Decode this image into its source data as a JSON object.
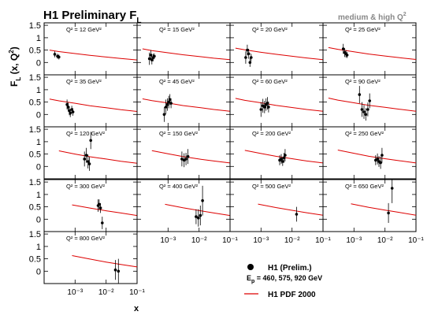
{
  "figure": {
    "title": "H1 Preliminary F",
    "title_sub": "L",
    "subtitle": "medium & high Q",
    "subtitle_sup": "2",
    "ylabel": "F",
    "ylabel_sub": "L",
    "ylabel_tail": " (x, Q",
    "ylabel_sup": "2",
    "ylabel_close": ")",
    "xlabel": "x",
    "legend_data": "H1 (Prelim.)",
    "legend_ep_prefix": "E",
    "legend_ep_sub": "p",
    "legend_ep_values": " = 460, 575, 920 GeV",
    "legend_curve": "H1 PDF 2000",
    "colors": {
      "curve": "#dd0000",
      "points": "#000000",
      "subtitle": "#888888"
    }
  },
  "chart_data": {
    "type": "scatter",
    "x_scale": "log",
    "xlim": [
      0.0001,
      0.1
    ],
    "ylim": [
      -0.5,
      1.6
    ],
    "y_ticks": [
      0,
      0.5,
      1,
      1.5
    ],
    "y_tick_labels": [
      "0",
      "0.5",
      "1",
      "1.5"
    ],
    "x_tick_labels": [
      "10⁻³",
      "10⁻²",
      "10⁻¹"
    ],
    "panel_label_prefix": "Q² = ",
    "panel_label_unit": " GeV²",
    "panels": [
      {
        "q2": "12",
        "curve": [
          [
            0.00015,
            0.5
          ],
          [
            0.0003,
            0.44
          ],
          [
            0.001,
            0.36
          ],
          [
            0.003,
            0.29
          ],
          [
            0.01,
            0.22
          ],
          [
            0.03,
            0.16
          ],
          [
            0.1,
            0.1
          ]
        ],
        "points": [
          [
            0.00022,
            0.33,
            0.12
          ],
          [
            0.00027,
            0.25,
            0.1
          ],
          [
            0.0003,
            0.22,
            0.1
          ]
        ]
      },
      {
        "q2": "15",
        "curve": [
          [
            0.00015,
            0.55
          ],
          [
            0.0003,
            0.48
          ],
          [
            0.001,
            0.39
          ],
          [
            0.003,
            0.31
          ],
          [
            0.01,
            0.24
          ],
          [
            0.03,
            0.17
          ],
          [
            0.1,
            0.11
          ]
        ],
        "points": [
          [
            0.00025,
            0.15,
            0.25
          ],
          [
            0.00028,
            0.3,
            0.2
          ],
          [
            0.0003,
            0.1,
            0.18
          ],
          [
            0.00033,
            0.2,
            0.15
          ],
          [
            0.00036,
            0.25,
            0.12
          ]
        ]
      },
      {
        "q2": "20",
        "curve": [
          [
            0.00015,
            0.58
          ],
          [
            0.0003,
            0.51
          ],
          [
            0.001,
            0.41
          ],
          [
            0.003,
            0.33
          ],
          [
            0.01,
            0.25
          ],
          [
            0.03,
            0.18
          ],
          [
            0.1,
            0.11
          ]
        ],
        "points": [
          [
            0.00032,
            0.2,
            0.25
          ],
          [
            0.00036,
            0.5,
            0.22
          ],
          [
            0.0004,
            0.35,
            0.2
          ],
          [
            0.00044,
            0.0,
            0.18
          ],
          [
            0.00048,
            0.2,
            0.15
          ]
        ]
      },
      {
        "q2": "25",
        "curve": [
          [
            0.00015,
            0.6
          ],
          [
            0.0003,
            0.53
          ],
          [
            0.001,
            0.43
          ],
          [
            0.003,
            0.34
          ],
          [
            0.01,
            0.26
          ],
          [
            0.03,
            0.19
          ],
          [
            0.1,
            0.12
          ]
        ],
        "points": [
          [
            0.00045,
            0.55,
            0.2
          ],
          [
            0.0005,
            0.4,
            0.18
          ],
          [
            0.00055,
            0.35,
            0.15
          ],
          [
            0.0006,
            0.3,
            0.12
          ]
        ]
      },
      {
        "q2": "35",
        "curve": [
          [
            0.00015,
            0.62
          ],
          [
            0.0003,
            0.55
          ],
          [
            0.001,
            0.45
          ],
          [
            0.003,
            0.35
          ],
          [
            0.01,
            0.27
          ],
          [
            0.03,
            0.19
          ],
          [
            0.1,
            0.12
          ]
        ],
        "points": [
          [
            0.00055,
            0.4,
            0.2
          ],
          [
            0.0006,
            0.3,
            0.18
          ],
          [
            0.00065,
            0.15,
            0.18
          ],
          [
            0.0007,
            0.05,
            0.16
          ],
          [
            0.00078,
            0.2,
            0.15
          ],
          [
            0.00085,
            0.1,
            0.15
          ]
        ]
      },
      {
        "q2": "45",
        "curve": [
          [
            0.00015,
            0.63
          ],
          [
            0.0003,
            0.56
          ],
          [
            0.001,
            0.46
          ],
          [
            0.003,
            0.36
          ],
          [
            0.01,
            0.28
          ],
          [
            0.03,
            0.2
          ],
          [
            0.1,
            0.13
          ]
        ],
        "points": [
          [
            0.00075,
            0.0,
            0.3
          ],
          [
            0.00085,
            0.3,
            0.3
          ],
          [
            0.00095,
            0.4,
            0.25
          ],
          [
            0.00105,
            0.5,
            0.25
          ],
          [
            0.00115,
            0.6,
            0.22
          ],
          [
            0.00125,
            0.45,
            0.2
          ]
        ]
      },
      {
        "q2": "60",
        "curve": [
          [
            0.00015,
            0.65
          ],
          [
            0.0003,
            0.57
          ],
          [
            0.001,
            0.47
          ],
          [
            0.003,
            0.37
          ],
          [
            0.01,
            0.28
          ],
          [
            0.03,
            0.2
          ],
          [
            0.1,
            0.13
          ]
        ],
        "points": [
          [
            0.001,
            0.2,
            0.3
          ],
          [
            0.00115,
            0.35,
            0.28
          ],
          [
            0.0013,
            0.3,
            0.25
          ],
          [
            0.00145,
            0.4,
            0.25
          ],
          [
            0.0016,
            0.45,
            0.25
          ],
          [
            0.00175,
            0.3,
            0.22
          ]
        ]
      },
      {
        "q2": "90",
        "curve": [
          [
            0.00015,
            0.66
          ],
          [
            0.0003,
            0.58
          ],
          [
            0.001,
            0.47
          ],
          [
            0.003,
            0.37
          ],
          [
            0.01,
            0.29
          ],
          [
            0.03,
            0.21
          ],
          [
            0.1,
            0.13
          ]
        ],
        "points": [
          [
            0.0015,
            0.8,
            0.35
          ],
          [
            0.0018,
            0.2,
            0.3
          ],
          [
            0.0021,
            0.1,
            0.28
          ],
          [
            0.0024,
            0.0,
            0.25
          ],
          [
            0.0028,
            0.2,
            0.28
          ],
          [
            0.0032,
            0.55,
            0.3
          ]
        ]
      },
      {
        "q2": "120",
        "curve": [
          [
            0.0003,
            0.63
          ],
          [
            0.001,
            0.5
          ],
          [
            0.003,
            0.39
          ],
          [
            0.01,
            0.3
          ],
          [
            0.03,
            0.21
          ],
          [
            0.1,
            0.13
          ]
        ],
        "points": [
          [
            0.002,
            0.3,
            0.3
          ],
          [
            0.0023,
            0.45,
            0.3
          ],
          [
            0.0026,
            0.2,
            0.28
          ],
          [
            0.0029,
            0.1,
            0.28
          ],
          [
            0.0032,
            1.05,
            0.35
          ]
        ]
      },
      {
        "q2": "150",
        "curve": [
          [
            0.0003,
            0.64
          ],
          [
            0.001,
            0.51
          ],
          [
            0.003,
            0.4
          ],
          [
            0.01,
            0.3
          ],
          [
            0.03,
            0.22
          ],
          [
            0.1,
            0.14
          ]
        ],
        "points": [
          [
            0.0028,
            0.3,
            0.3
          ],
          [
            0.0033,
            0.25,
            0.28
          ],
          [
            0.0038,
            0.3,
            0.25
          ],
          [
            0.0044,
            0.4,
            0.3
          ]
        ]
      },
      {
        "q2": "200",
        "curve": [
          [
            0.0003,
            0.65
          ],
          [
            0.001,
            0.52
          ],
          [
            0.003,
            0.41
          ],
          [
            0.01,
            0.31
          ],
          [
            0.03,
            0.22
          ],
          [
            0.1,
            0.14
          ]
        ],
        "points": [
          [
            0.004,
            0.25,
            0.2
          ],
          [
            0.0045,
            0.3,
            0.2
          ],
          [
            0.005,
            0.2,
            0.18
          ],
          [
            0.0055,
            0.35,
            0.2
          ],
          [
            0.006,
            0.45,
            0.25
          ]
        ]
      },
      {
        "q2": "250",
        "curve": [
          [
            0.0003,
            0.66
          ],
          [
            0.001,
            0.53
          ],
          [
            0.003,
            0.41
          ],
          [
            0.01,
            0.31
          ],
          [
            0.03,
            0.23
          ],
          [
            0.1,
            0.14
          ]
        ],
        "points": [
          [
            0.005,
            0.25,
            0.2
          ],
          [
            0.0057,
            0.3,
            0.22
          ],
          [
            0.0064,
            0.2,
            0.22
          ],
          [
            0.0072,
            0.15,
            0.25
          ],
          [
            0.008,
            0.45,
            0.3
          ]
        ]
      },
      {
        "q2": "300",
        "curve": [
          [
            0.0008,
            0.58
          ],
          [
            0.003,
            0.45
          ],
          [
            0.01,
            0.34
          ],
          [
            0.03,
            0.25
          ],
          [
            0.1,
            0.15
          ]
        ],
        "points": [
          [
            0.0055,
            0.55,
            0.25
          ],
          [
            0.006,
            0.6,
            0.2
          ],
          [
            0.0066,
            0.45,
            0.2
          ],
          [
            0.0075,
            -0.15,
            0.25
          ]
        ]
      },
      {
        "q2": "400",
        "curve": [
          [
            0.0008,
            0.6
          ],
          [
            0.003,
            0.46
          ],
          [
            0.01,
            0.35
          ],
          [
            0.03,
            0.25
          ],
          [
            0.1,
            0.15
          ]
        ],
        "points": [
          [
            0.008,
            0.1,
            0.3
          ],
          [
            0.0095,
            0.05,
            0.35
          ],
          [
            0.011,
            0.15,
            0.4
          ],
          [
            0.013,
            0.75,
            0.6
          ]
        ]
      },
      {
        "q2": "500",
        "curve": [
          [
            0.0008,
            0.61
          ],
          [
            0.003,
            0.47
          ],
          [
            0.01,
            0.36
          ],
          [
            0.03,
            0.26
          ],
          [
            0.1,
            0.16
          ]
        ],
        "points": [
          [
            0.014,
            0.2,
            0.3
          ]
        ]
      },
      {
        "q2": "650",
        "curve": [
          [
            0.0008,
            0.62
          ],
          [
            0.003,
            0.48
          ],
          [
            0.01,
            0.37
          ],
          [
            0.03,
            0.27
          ],
          [
            0.1,
            0.16
          ]
        ],
        "points": [
          [
            0.013,
            0.25,
            0.4
          ],
          [
            0.017,
            1.25,
            0.6
          ]
        ]
      },
      {
        "q2": "800",
        "curve": [
          [
            0.0008,
            0.63
          ],
          [
            0.003,
            0.49
          ],
          [
            0.01,
            0.37
          ],
          [
            0.03,
            0.27
          ],
          [
            0.1,
            0.17
          ]
        ],
        "points": [
          [
            0.02,
            0.05,
            0.4
          ],
          [
            0.025,
            0.0,
            0.5
          ]
        ]
      }
    ]
  }
}
